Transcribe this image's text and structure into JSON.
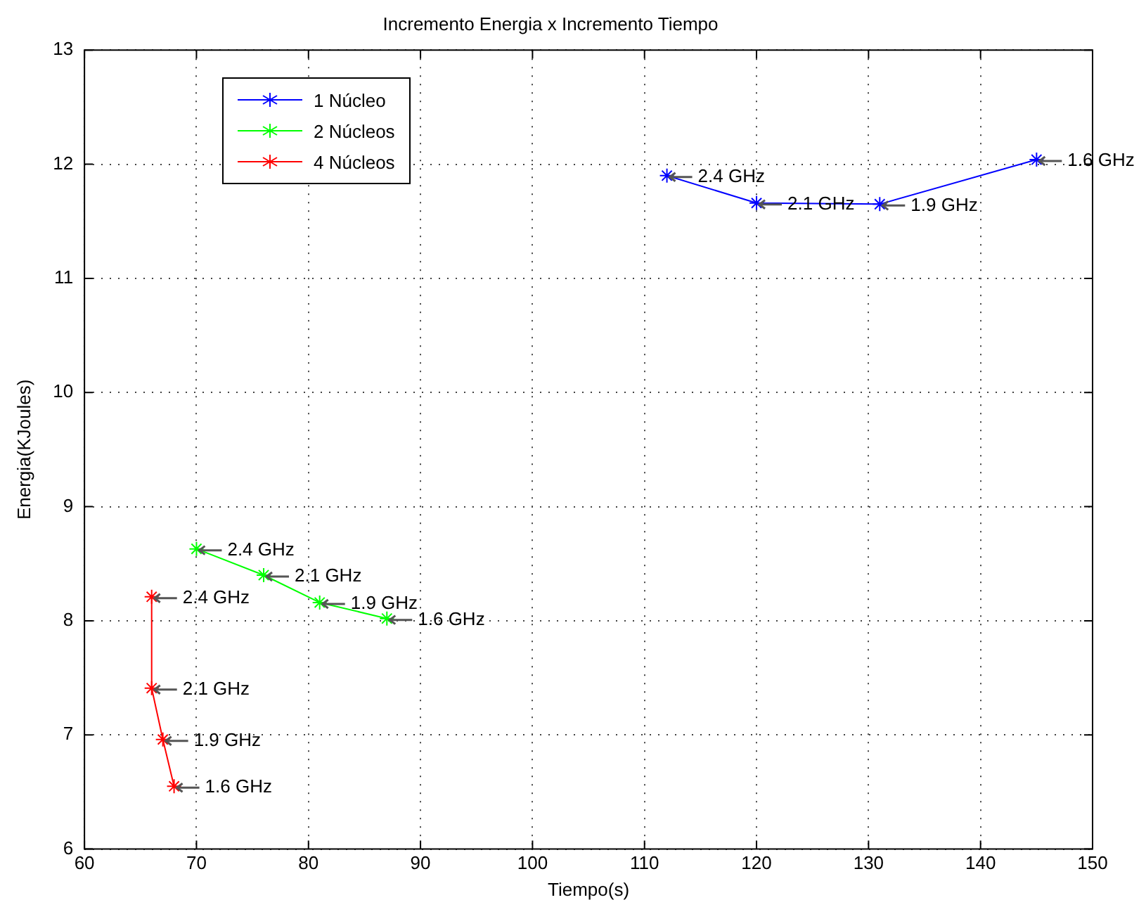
{
  "chart_data": {
    "type": "line",
    "title": "Incremento Energia x Incremento Tiempo",
    "xlabel": "Tiempo(s)",
    "ylabel": "Energia(KJoules)",
    "xlim": [
      60,
      150
    ],
    "xticks": [
      60,
      70,
      80,
      90,
      100,
      110,
      120,
      130,
      140,
      150
    ],
    "ylim": [
      6,
      13
    ],
    "yticks": [
      6,
      7,
      8,
      9,
      10,
      11,
      12,
      13
    ],
    "grid": true,
    "legend": "top left",
    "marker": "cross",
    "line_style": "solid",
    "series": [
      {
        "name": "1 Núcleo",
        "color": "#0000ff",
        "x": [
          112,
          120,
          131,
          145
        ],
        "values": [
          11.9,
          11.66,
          11.65,
          12.04
        ]
      },
      {
        "name": "2 Núcleos",
        "color": "#00ff00",
        "x": [
          70,
          76,
          81,
          87
        ],
        "values": [
          8.63,
          8.4,
          8.16,
          8.02
        ]
      },
      {
        "name": "4 Núcleos",
        "color": "#ff0000",
        "x": [
          66,
          66,
          67,
          68
        ],
        "values": [
          8.21,
          7.41,
          6.96,
          6.55
        ]
      }
    ],
    "annotations": [
      {
        "text": "2.4 GHz",
        "x": 112,
        "y": 11.9
      },
      {
        "text": "2.1 GHz",
        "x": 120,
        "y": 11.66
      },
      {
        "text": "1.9 GHz",
        "x": 131,
        "y": 11.65
      },
      {
        "text": "1.6 GHz",
        "x": 145,
        "y": 12.04
      },
      {
        "text": "2.4 GHz",
        "x": 70,
        "y": 8.63
      },
      {
        "text": "2.1 GHz",
        "x": 76,
        "y": 8.4
      },
      {
        "text": "1.9 GHz",
        "x": 81,
        "y": 8.16
      },
      {
        "text": "1.6 GHz",
        "x": 87,
        "y": 8.02
      },
      {
        "text": "2.4 GHz",
        "x": 66,
        "y": 8.21
      },
      {
        "text": "2.1 GHz",
        "x": 66,
        "y": 7.41
      },
      {
        "text": "1.9 GHz",
        "x": 67,
        "y": 6.96
      },
      {
        "text": "1.6 GHz",
        "x": 68,
        "y": 6.55
      }
    ]
  }
}
